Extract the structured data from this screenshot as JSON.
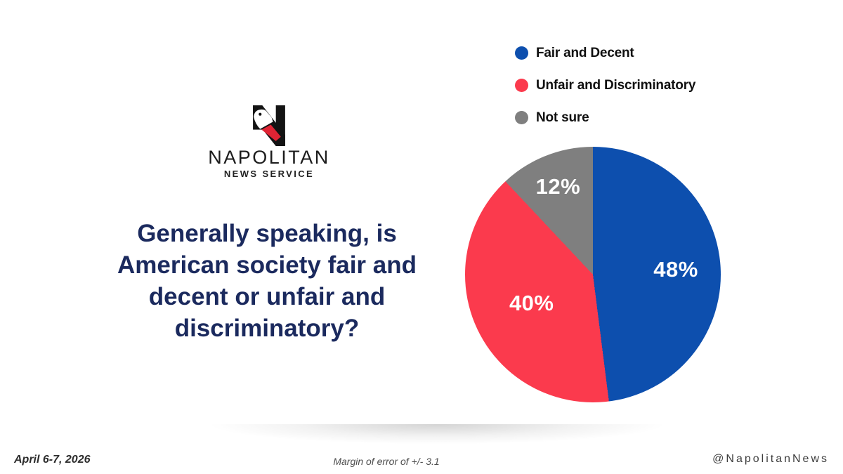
{
  "logo": {
    "brand": "NAPOLITAN",
    "tagline": "NEWS SERVICE",
    "icon": "napolitan-eagle-n-logo"
  },
  "question": "Generally speaking, is American society fair and decent or unfair and discriminatory?",
  "footer": {
    "date": "April 6-7, 2026",
    "margin_of_error": "Margin of error of +/- 3.1",
    "handle": "@NapolitanNews"
  },
  "colors": {
    "question_text": "#1b2a5e",
    "blue": "#0d4fae",
    "red": "#fb3a4d",
    "gray": "#7f7f7f",
    "data_label": "#ffffff"
  },
  "chart_data": {
    "type": "pie",
    "title": "Generally speaking, is American society fair and decent or unfair and discriminatory?",
    "legend_position": "top-right",
    "start_angle_deg": 0,
    "direction": "clockwise",
    "data_label_color": "#ffffff",
    "slices": [
      {
        "label": "Fair and Decent",
        "value": 48,
        "data_label": "48%",
        "color": "#0d4fae",
        "label_r": 0.65
      },
      {
        "label": "Unfair and Discriminatory",
        "value": 40,
        "data_label": "40%",
        "color": "#fb3a4d",
        "label_r": 0.53
      },
      {
        "label": "Not sure",
        "value": 12,
        "data_label": "12%",
        "color": "#7f7f7f",
        "label_r": 0.74
      }
    ]
  }
}
